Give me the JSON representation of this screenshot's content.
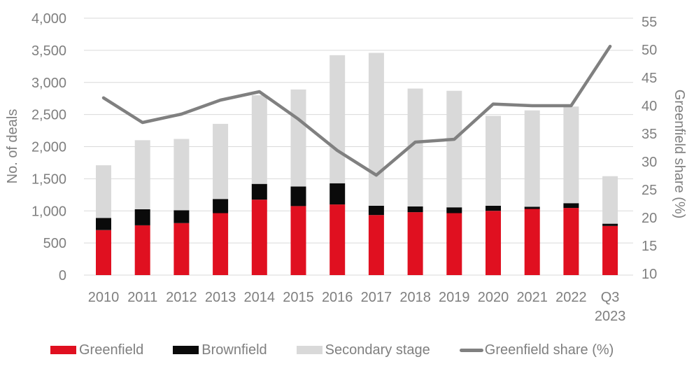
{
  "colors": {
    "background": "#ffffff",
    "greenfield_red": "#e01020",
    "brownfield_black": "#0a0a0a",
    "secondary_gray": "#d9d9d9",
    "line_gray": "#808080",
    "grid_gray": "#d9d9d9",
    "axis_text_gray": "#7f7f7f"
  },
  "chart_data": {
    "type": "bar",
    "subtype": "stacked-bars-with-right-axis-line",
    "title": "",
    "grid": true,
    "legend_position": "bottom",
    "categories": [
      "2010",
      "2011",
      "2012",
      "2013",
      "2014",
      "2015",
      "2016",
      "2017",
      "2018",
      "2019",
      "2020",
      "2021",
      "2022",
      "Q3 2023"
    ],
    "series": [
      {
        "name": "Greenfield",
        "color": "#e01020",
        "values": [
          700,
          775,
          810,
          965,
          1175,
          1075,
          1100,
          935,
          980,
          965,
          1000,
          1030,
          1045,
          765
        ]
      },
      {
        "name": "Brownfield",
        "color": "#0a0a0a",
        "values": [
          190,
          250,
          200,
          220,
          245,
          305,
          330,
          145,
          90,
          90,
          80,
          35,
          75,
          35
        ]
      },
      {
        "name": "Secondary stage",
        "color": "#d9d9d9",
        "values": [
          820,
          1075,
          1110,
          1170,
          1380,
          1510,
          1995,
          2380,
          1835,
          1815,
          1400,
          1500,
          1505,
          740
        ]
      }
    ],
    "stacked_totals": [
      1710,
      2100,
      2120,
      2355,
      2800,
      2890,
      3425,
      3460,
      2905,
      2870,
      2480,
      2565,
      2625,
      1540
    ],
    "line_series": {
      "name": "Greenfield share (%)",
      "color": "#808080",
      "axis": "right",
      "values": [
        41.4,
        37,
        38.5,
        41,
        42.5,
        37.6,
        32,
        27.6,
        33.5,
        34,
        40.3,
        40,
        40,
        50.6
      ]
    },
    "left_axis": {
      "label": "No. of deals",
      "min": 0,
      "max": 4000,
      "tick_step": 500,
      "tick_labels": [
        "0",
        "500",
        "1,000",
        "1,500",
        "2,000",
        "2,500",
        "3,000",
        "3,500",
        "4,000"
      ]
    },
    "right_axis": {
      "label": "Greenfield share (%)",
      "min": 10,
      "max": 55,
      "tick_step": 5,
      "tick_labels": [
        "10",
        "15",
        "20",
        "25",
        "30",
        "35",
        "40",
        "45",
        "50",
        "55"
      ]
    }
  },
  "legend": {
    "items": [
      {
        "label": "Greenfield",
        "swatch": "rect",
        "color": "#e01020"
      },
      {
        "label": "Brownfield",
        "swatch": "rect",
        "color": "#0a0a0a"
      },
      {
        "label": "Secondary stage",
        "swatch": "rect",
        "color": "#d9d9d9"
      },
      {
        "label": "Greenfield share (%)",
        "swatch": "line",
        "color": "#808080"
      }
    ]
  }
}
